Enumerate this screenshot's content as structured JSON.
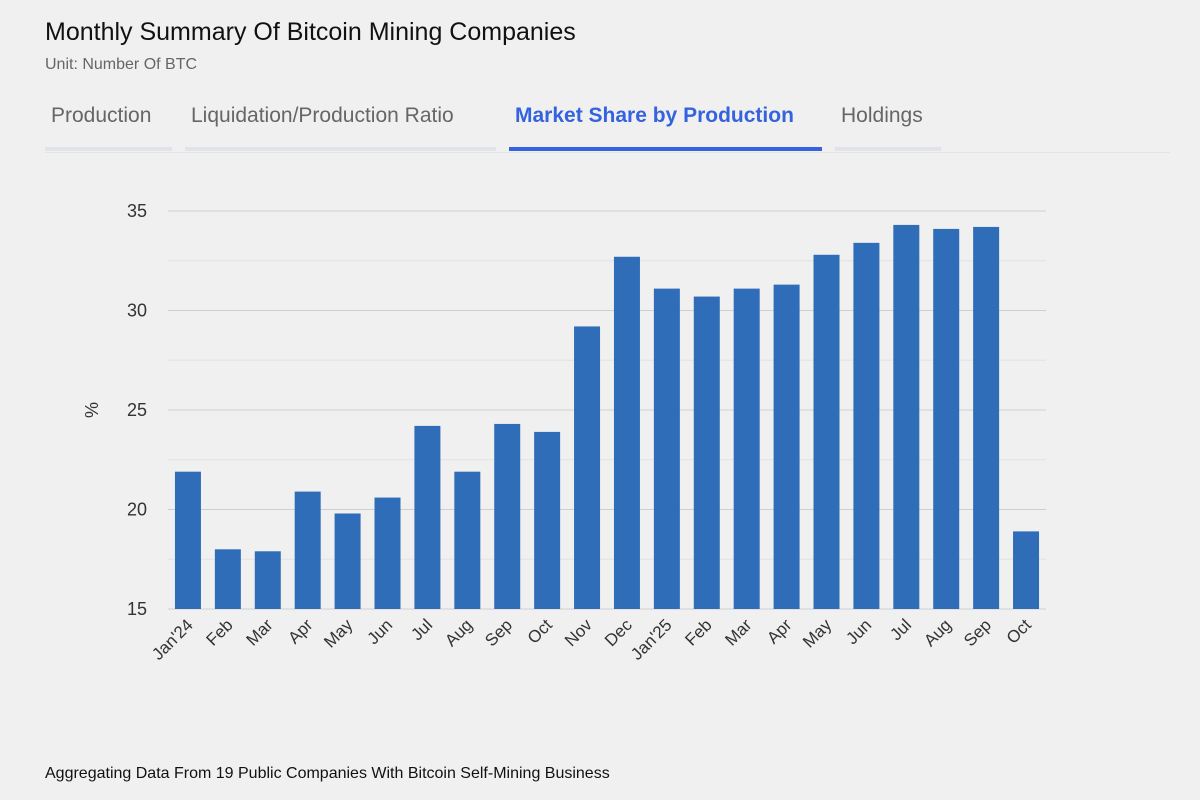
{
  "header": {
    "title": "Monthly Summary Of Bitcoin Mining Companies",
    "subtitle": "Unit: Number Of BTC"
  },
  "tabs": [
    {
      "label": "Production"
    },
    {
      "label": "Liquidation/Production Ratio"
    },
    {
      "label": "Market Share by Production",
      "active": true
    },
    {
      "label": "Holdings"
    }
  ],
  "footer": "Aggregating Data From 19 Public Companies With Bitcoin Self-Mining Business",
  "chart_data": {
    "type": "bar",
    "categories": [
      "Jan'24",
      "Feb",
      "Mar",
      "Apr",
      "May",
      "Jun",
      "Jul",
      "Aug",
      "Sep",
      "Oct",
      "Nov",
      "Dec",
      "Jan'25",
      "Feb",
      "Mar",
      "Apr",
      "May",
      "Jun",
      "Jul",
      "Aug",
      "Sep",
      "Oct"
    ],
    "values": [
      21.9,
      18.0,
      17.9,
      20.9,
      19.8,
      20.6,
      24.2,
      21.9,
      24.3,
      23.9,
      29.2,
      32.7,
      31.1,
      30.7,
      31.1,
      31.3,
      32.8,
      33.4,
      34.3,
      34.1,
      34.2,
      18.9
    ],
    "ylabel": "%",
    "ylim": [
      15,
      35
    ],
    "yticks": [
      15,
      20,
      25,
      30,
      35
    ],
    "grid": true,
    "color": "#2f6db8"
  }
}
